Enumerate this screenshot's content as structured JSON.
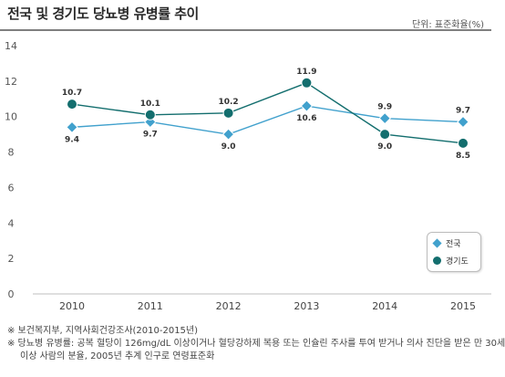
{
  "header": {
    "title": "전국 및 경기도 당뇨병 유병률 추이",
    "unit": "단위: 표준화율(%)"
  },
  "chart_data": {
    "type": "line",
    "categories": [
      "2010",
      "2011",
      "2012",
      "2013",
      "2014",
      "2015"
    ],
    "ylim": [
      0,
      14
    ],
    "yticks": [
      "0",
      "2",
      "4",
      "6",
      "8",
      "10",
      "12",
      "14"
    ],
    "grid": false,
    "legend_position": "bottom-right",
    "series": [
      {
        "name": "전국",
        "values": [
          9.4,
          9.7,
          9.0,
          10.6,
          9.9,
          9.7
        ],
        "labels": [
          "9.4",
          "9.7",
          "9.0",
          "10.6",
          "9.9",
          "9.7"
        ],
        "label_positions": [
          "below",
          "below",
          "below",
          "below",
          "above",
          "above"
        ],
        "color": "#41a1cd",
        "marker": "diamond"
      },
      {
        "name": "경기도",
        "values": [
          10.7,
          10.1,
          10.2,
          11.9,
          9.0,
          8.5
        ],
        "labels": [
          "10.7",
          "10.1",
          "10.2",
          "11.9",
          "9.0",
          "8.5"
        ],
        "label_positions": [
          "above",
          "above",
          "above",
          "above",
          "below",
          "below"
        ],
        "color": "#136e6e",
        "marker": "circle"
      }
    ]
  },
  "notes": [
    "※ 보건복지부, 지역사회건강조사(2010-2015년)",
    "※ 당뇨병 유병률: 공복 혈당이 126mg/dL 이상이거나 혈당강하제 복용 또는 인슐린 주사를 투여 받거나 의사 진단을 받은 만 30세",
    "이상 사람의 분율, 2005년 추계 인구로 연령표준화"
  ]
}
